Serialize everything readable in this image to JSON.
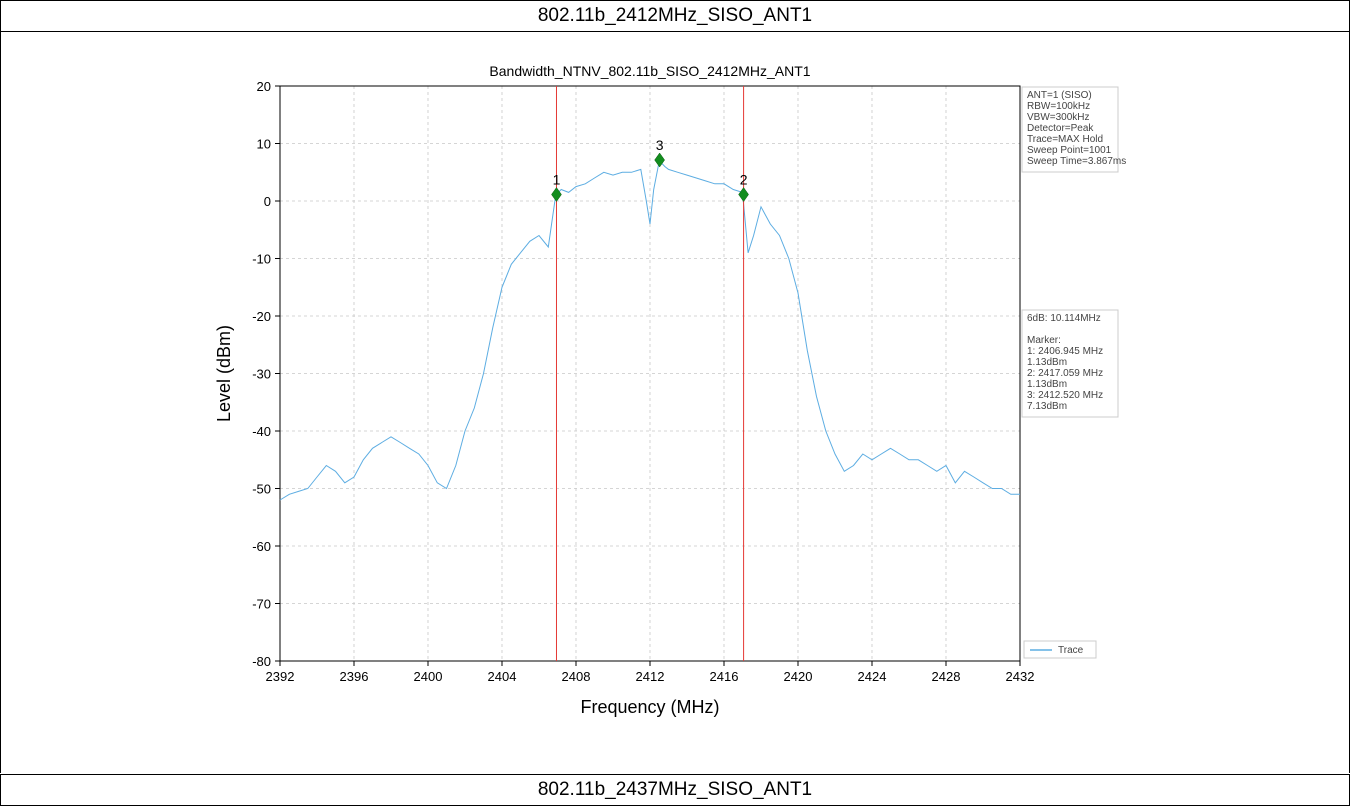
{
  "section_top": "802.11b_2412MHz_SISO_ANT1",
  "section_bottom": "802.11b_2437MHz_SISO_ANT1",
  "chart_data": {
    "type": "line",
    "title": "Bandwidth_NTNV_802.11b_SISO_2412MHz_ANT1",
    "xlabel": "Frequency (MHz)",
    "ylabel": "Level (dBm)",
    "xlim": [
      2392,
      2432
    ],
    "ylim": [
      -80,
      20
    ],
    "xticks": [
      2392,
      2396,
      2400,
      2404,
      2408,
      2412,
      2416,
      2420,
      2424,
      2428,
      2432
    ],
    "yticks": [
      20,
      10,
      0,
      -10,
      -20,
      -30,
      -40,
      -50,
      -60,
      -70,
      -80
    ],
    "grid": true,
    "legend_position": "bottom-right",
    "series": [
      {
        "name": "Trace",
        "color": "#5dade2",
        "x": [
          2392,
          2392.5,
          2393,
          2393.5,
          2394,
          2394.5,
          2395,
          2395.5,
          2396,
          2396.5,
          2397,
          2397.5,
          2398,
          2398.5,
          2399,
          2399.5,
          2400,
          2400.5,
          2401,
          2401.5,
          2402,
          2402.5,
          2403,
          2403.5,
          2404,
          2404.5,
          2405,
          2405.5,
          2406,
          2406.5,
          2406.9,
          2407.2,
          2407.6,
          2408,
          2408.5,
          2409,
          2409.5,
          2410,
          2410.5,
          2411,
          2411.5,
          2411.8,
          2412,
          2412.2,
          2412.5,
          2412.8,
          2413,
          2413.5,
          2414,
          2414.5,
          2415,
          2415.5,
          2416,
          2416.5,
          2417,
          2417.3,
          2417.6,
          2418,
          2418.5,
          2419,
          2419.5,
          2420,
          2420.5,
          2421,
          2421.5,
          2422,
          2422.5,
          2423,
          2423.5,
          2424,
          2424.5,
          2425,
          2425.5,
          2426,
          2426.5,
          2427,
          2427.5,
          2428,
          2428.5,
          2429,
          2429.5,
          2430,
          2430.5,
          2431,
          2431.5,
          2432
        ],
        "y": [
          -52,
          -51,
          -50.5,
          -50,
          -48,
          -46,
          -47,
          -49,
          -48,
          -45,
          -43,
          -42,
          -41,
          -42,
          -43,
          -44,
          -46,
          -49,
          -50,
          -46,
          -40,
          -36,
          -30,
          -22,
          -15,
          -11,
          -9,
          -7,
          -6,
          -8,
          1,
          2,
          1.5,
          2.5,
          3,
          4,
          5,
          4.5,
          5,
          5,
          5.5,
          0,
          -4,
          2,
          7,
          6,
          5.5,
          5,
          4.5,
          4,
          3.5,
          3,
          3,
          2,
          1.5,
          -9,
          -6,
          -1,
          -4,
          -6,
          -10,
          -16,
          -26,
          -34,
          -40,
          -44,
          -47,
          -46,
          -44,
          -45,
          -44,
          -43,
          -44,
          -45,
          -45,
          -46,
          -47,
          -46,
          -49,
          -47,
          -48,
          -49,
          -50,
          -50,
          -51,
          -51
        ]
      }
    ],
    "vertical_lines": [
      2406.945,
      2417.059
    ],
    "markers": [
      {
        "label": "1",
        "x": 2406.945,
        "y": 1.13
      },
      {
        "label": "2",
        "x": 2417.059,
        "y": 1.13
      },
      {
        "label": "3",
        "x": 2412.52,
        "y": 7.13
      }
    ],
    "info_box_top": [
      "ANT=1 (SISO)",
      "RBW=100kHz",
      "VBW=300kHz",
      "Detector=Peak",
      "Trace=MAX Hold",
      "Sweep Point=1001",
      "Sweep Time=3.867ms"
    ],
    "info_box_mid": [
      "6dB: 10.114MHz",
      "",
      "Marker:",
      "1: 2406.945 MHz",
      "    1.13dBm",
      "2: 2417.059 MHz",
      "    1.13dBm",
      "3: 2412.520 MHz",
      "    7.13dBm"
    ],
    "legend": [
      "Trace"
    ]
  }
}
